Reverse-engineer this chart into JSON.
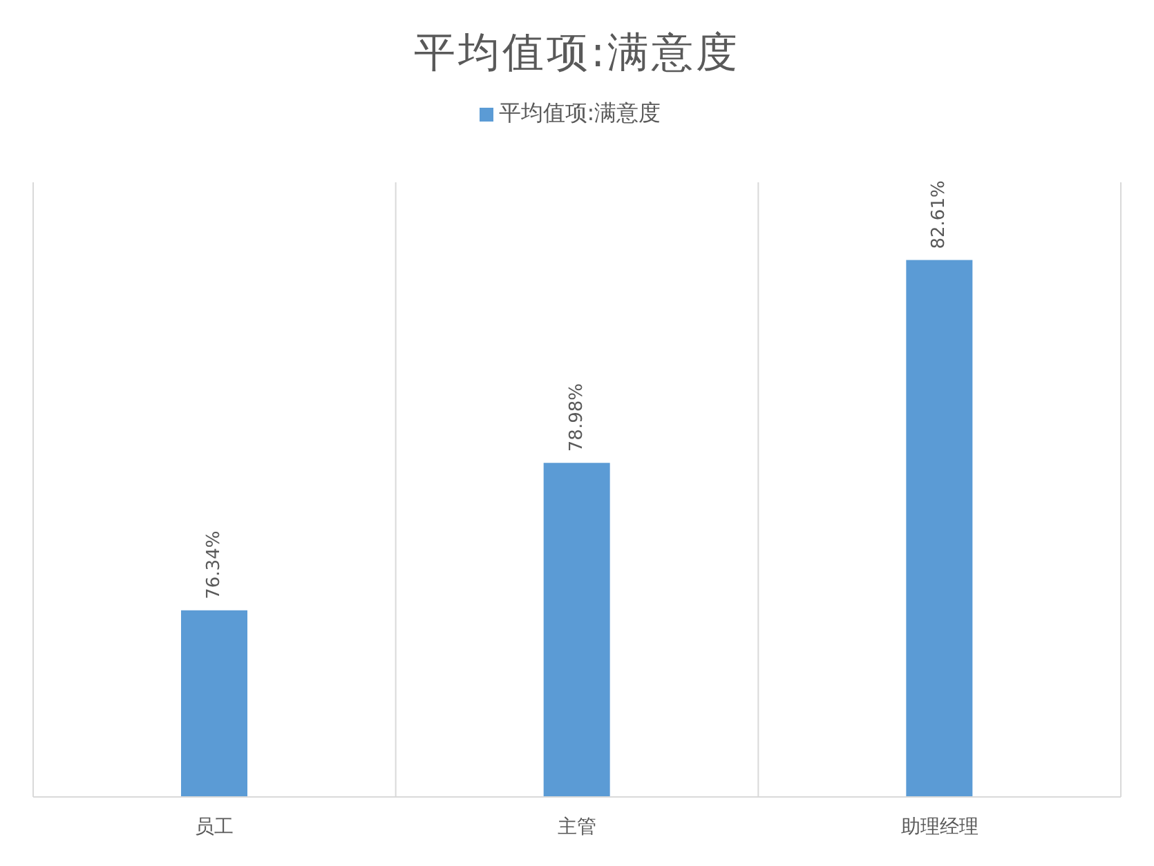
{
  "chart_data": {
    "type": "bar",
    "title": "平均值项:满意度",
    "categories": [
      "员工",
      "主管",
      "助理经理"
    ],
    "series": [
      {
        "name": "平均值项:满意度",
        "color": "#5b9bd5",
        "values": [
          76.34,
          78.98,
          82.61
        ],
        "value_labels": [
          "76.34%",
          "78.98%",
          "82.61%"
        ]
      }
    ],
    "ylim": [
      73,
      84
    ],
    "tick_labels": "x",
    "grid": "x",
    "legend": "top"
  }
}
